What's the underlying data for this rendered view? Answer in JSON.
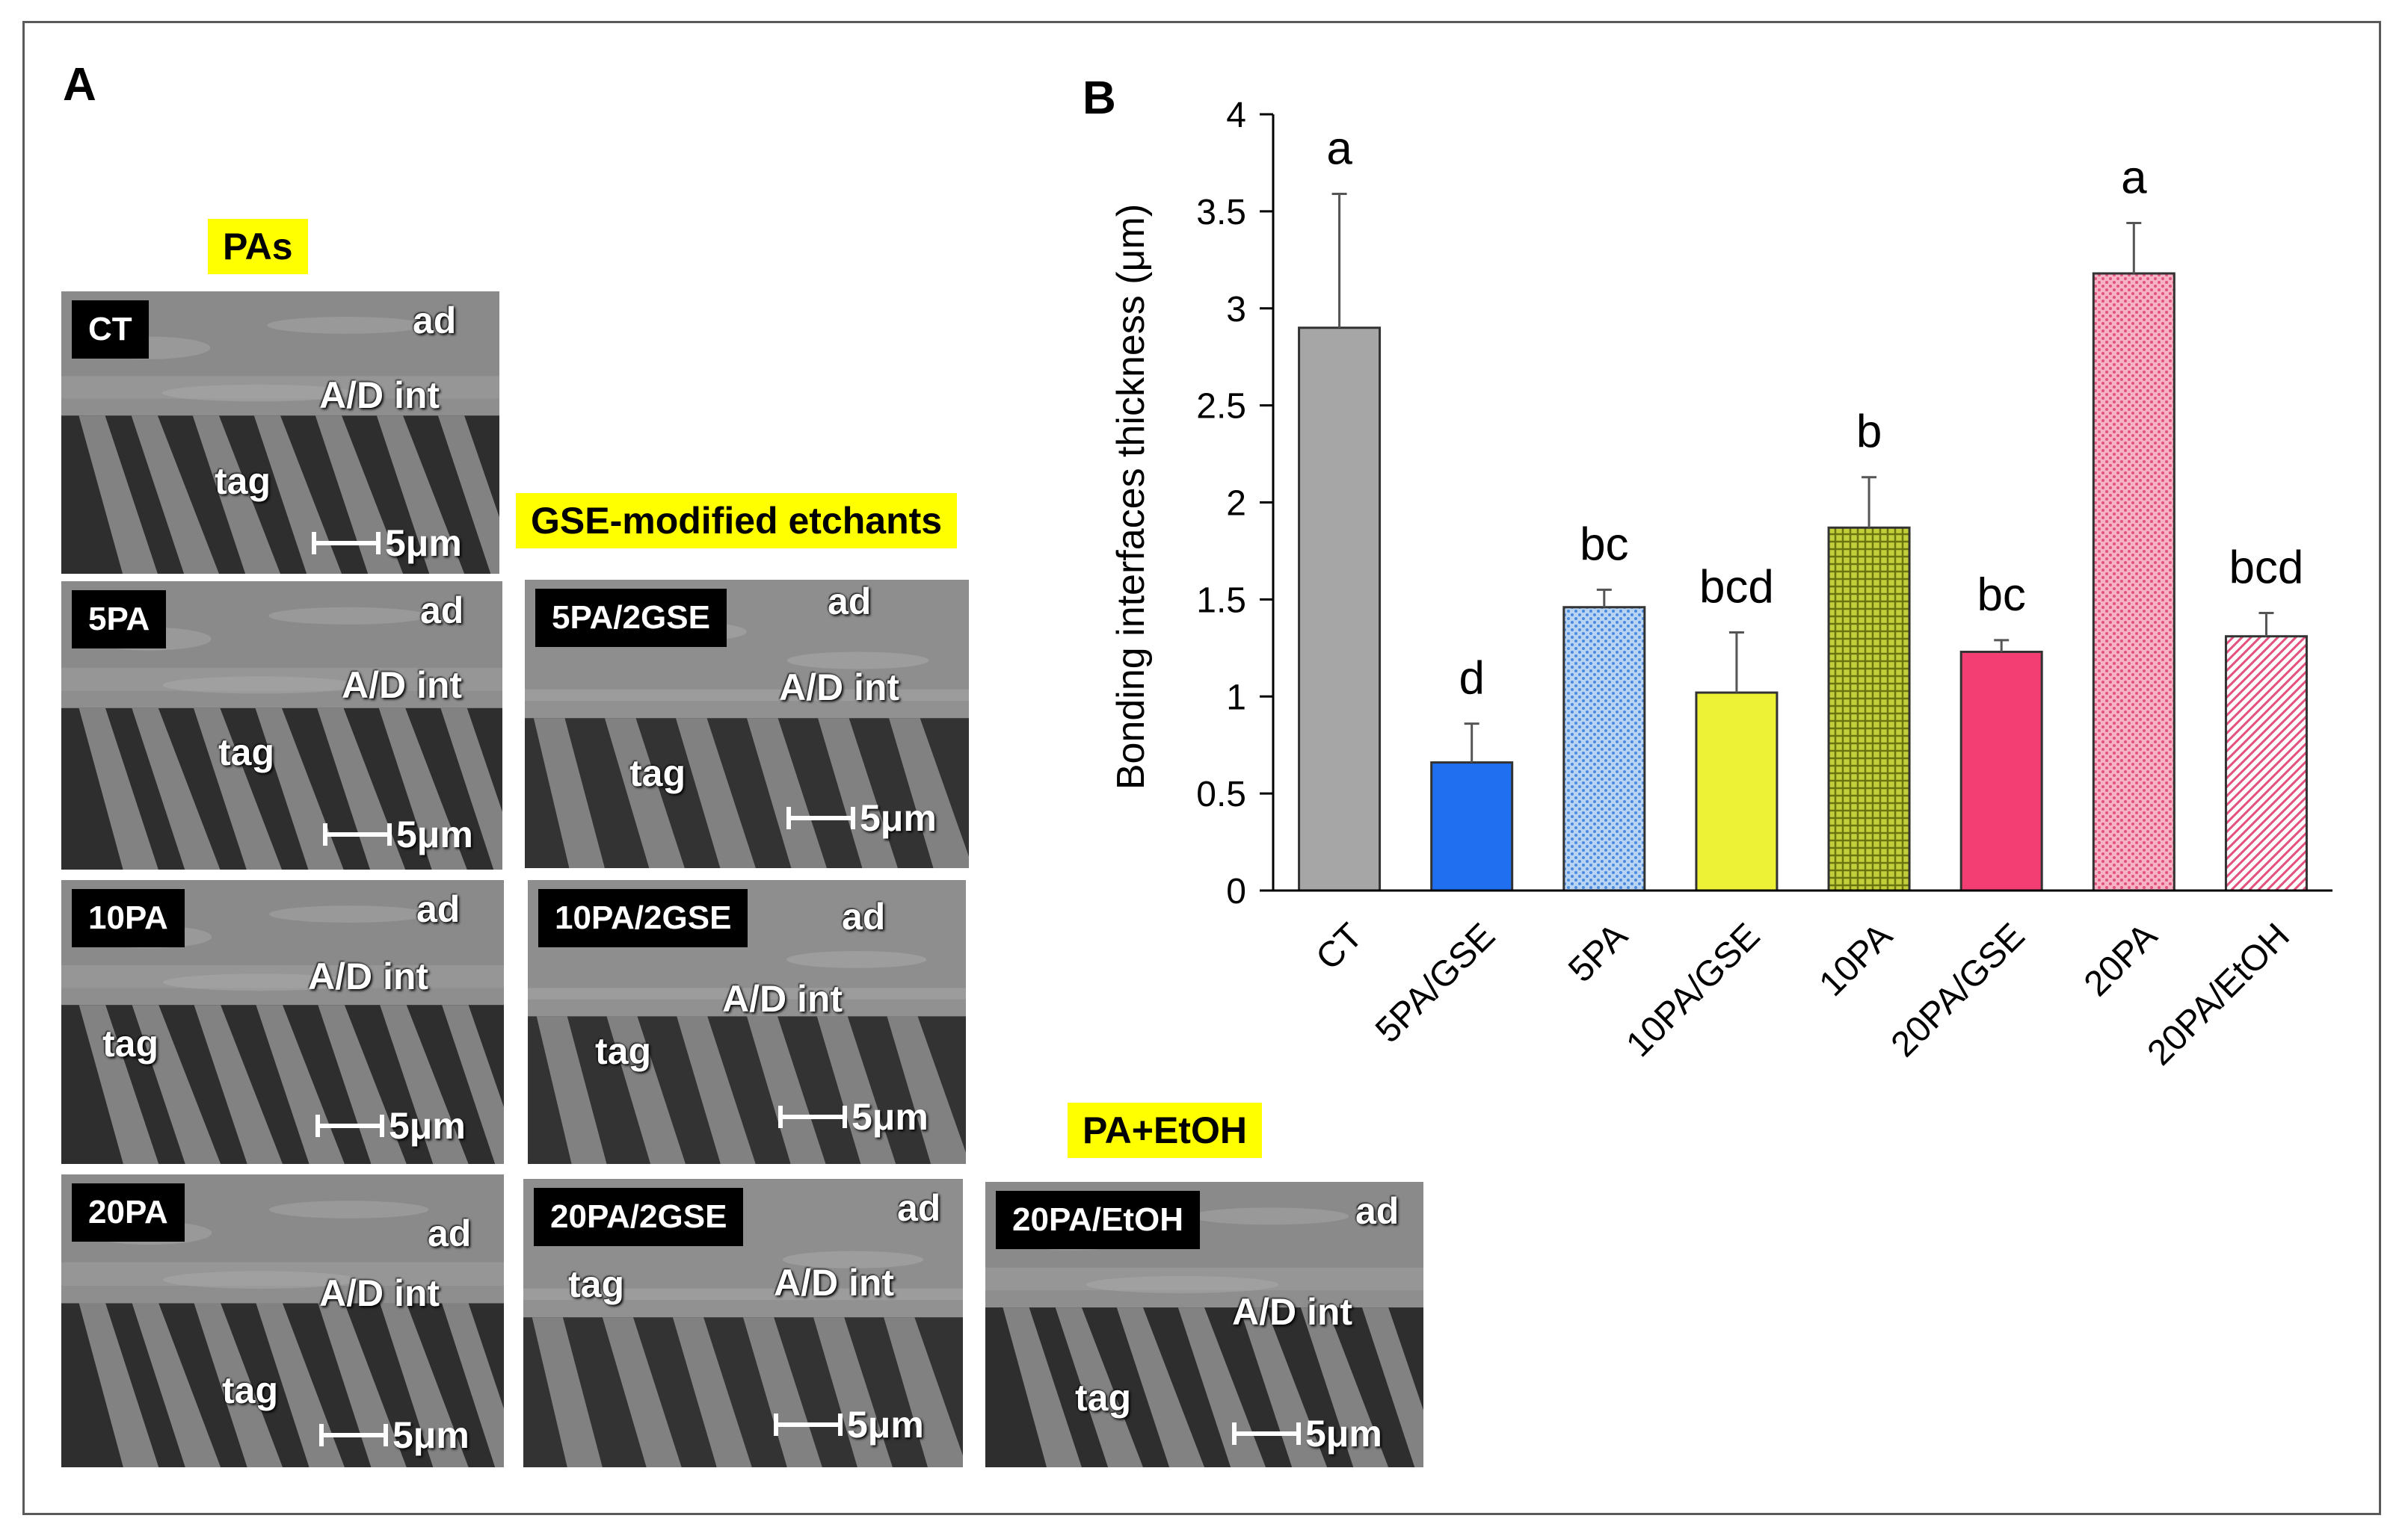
{
  "panels": {
    "a": "A",
    "b": "B"
  },
  "groups": {
    "pas": "PAs",
    "gse": "GSE-modified etchants",
    "etoh": "PA+EtOH"
  },
  "micrographs": [
    {
      "id": "ct",
      "label": "CT",
      "ad": "ad",
      "int": "A/D int",
      "tag": "tag",
      "scale": "5μm"
    },
    {
      "id": "5pa",
      "label": "5PA",
      "ad": "ad",
      "int": "A/D int",
      "tag": "tag",
      "scale": "5μm"
    },
    {
      "id": "10pa",
      "label": "10PA",
      "ad": "ad",
      "int": "A/D int",
      "tag": "tag",
      "scale": "5μm"
    },
    {
      "id": "20pa",
      "label": "20PA",
      "ad": "ad",
      "int": "A/D int",
      "tag": "tag",
      "scale": "5μm"
    },
    {
      "id": "5pa2gse",
      "label": "5PA/2GSE",
      "ad": "ad",
      "int": "A/D int",
      "tag": "tag",
      "scale": "5μm"
    },
    {
      "id": "10pa2gse",
      "label": "10PA/2GSE",
      "ad": "ad",
      "int": "A/D int",
      "tag": "tag",
      "scale": "5μm"
    },
    {
      "id": "20pa2gse",
      "label": "20PA/2GSE",
      "ad": "ad",
      "int": "A/D int",
      "tag": "tag",
      "scale": "5μm"
    },
    {
      "id": "20paetoh",
      "label": "20PA/EtOH",
      "ad": "ad",
      "int": "A/D int",
      "tag": "tag",
      "scale": "5μm"
    }
  ],
  "chart_data": {
    "type": "bar",
    "title": "",
    "xlabel": "",
    "ylabel": "Bonding interfaces thickness (μm)",
    "ylim": [
      0,
      4
    ],
    "yticks": [
      "0",
      "0.5",
      "1",
      "1.5",
      "2",
      "2.5",
      "3",
      "3.5",
      "4"
    ],
    "categories": [
      "CT",
      "5PA/GSE",
      "5PA",
      "10PA/GSE",
      "10PA",
      "20PA/GSE",
      "20PA",
      "20PA/EtOH"
    ],
    "values": [
      2.9,
      0.66,
      1.46,
      1.02,
      1.87,
      1.23,
      3.18,
      1.31
    ],
    "errors": [
      0.69,
      0.2,
      0.09,
      0.31,
      0.26,
      0.06,
      0.26,
      0.12
    ],
    "letters": [
      "a",
      "d",
      "bc",
      "bcd",
      "b",
      "bc",
      "a",
      "bcd"
    ],
    "colors": [
      "#a6a6a6",
      "#1f6ff0",
      "#9ec3ee",
      "#eef237",
      "#a3b21a",
      "#f23e73",
      "#f08aa5",
      "#f6c6d6"
    ],
    "patterns": [
      "solid",
      "solid",
      "dots",
      "solid",
      "grid",
      "solid",
      "dots",
      "diagonal"
    ]
  }
}
